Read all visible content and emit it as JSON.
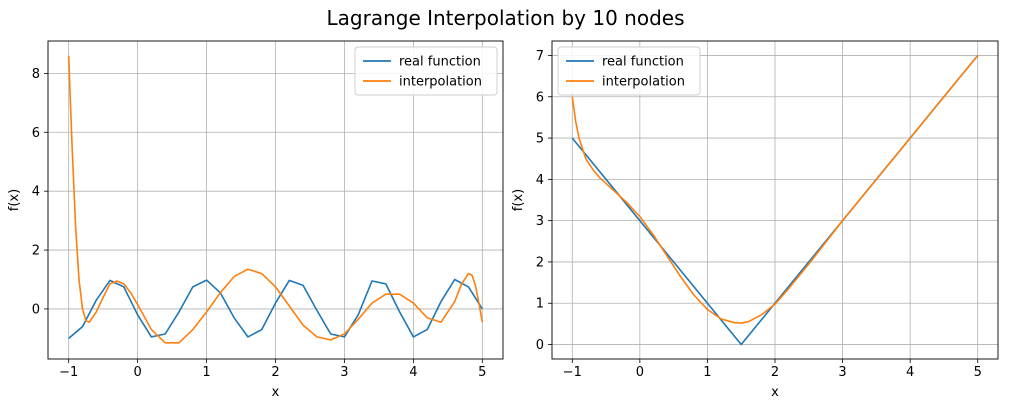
{
  "figure": {
    "title": "Lagrange Interpolation by 10 nodes"
  },
  "chart_data": [
    {
      "type": "line",
      "xlabel": "x",
      "ylabel": "f(x)",
      "xlim": [
        -1.3,
        5.3
      ],
      "ylim": [
        -1.7,
        9.1
      ],
      "xticks": [
        -1,
        0,
        1,
        2,
        3,
        4,
        5
      ],
      "yticks": [
        0,
        2,
        4,
        6,
        8
      ],
      "grid": true,
      "legend": "top-right",
      "colors": {
        "real": "#1f77b4",
        "interp": "#ff7f0e",
        "grid": "#b0b0b0"
      },
      "series": [
        {
          "name": "real function",
          "x": [
            -1.0,
            -0.8,
            -0.6,
            -0.4,
            -0.2,
            0.0,
            0.2,
            0.4,
            0.6,
            0.8,
            1.0,
            1.2,
            1.4,
            1.6,
            1.8,
            2.0,
            2.2,
            2.4,
            2.6,
            2.8,
            3.0,
            3.2,
            3.4,
            3.6,
            3.8,
            4.0,
            4.2,
            4.4,
            4.6,
            4.8,
            5.0
          ],
          "y": [
            -1.0,
            -0.6,
            0.3,
            0.97,
            0.75,
            -0.2,
            -0.95,
            -0.85,
            -0.1,
            0.75,
            0.98,
            0.55,
            -0.3,
            -0.95,
            -0.7,
            0.2,
            0.97,
            0.8,
            -0.05,
            -0.85,
            -0.95,
            -0.2,
            0.95,
            0.85,
            -0.1,
            -0.95,
            -0.7,
            0.25,
            1.0,
            0.75,
            0.0
          ]
        },
        {
          "name": "interpolation",
          "x": [
            -1.0,
            -0.95,
            -0.9,
            -0.85,
            -0.8,
            -0.75,
            -0.7,
            -0.6,
            -0.5,
            -0.4,
            -0.3,
            -0.2,
            -0.1,
            0.0,
            0.2,
            0.4,
            0.6,
            0.8,
            1.0,
            1.2,
            1.4,
            1.6,
            1.8,
            2.0,
            2.2,
            2.4,
            2.6,
            2.8,
            3.0,
            3.2,
            3.4,
            3.6,
            3.8,
            4.0,
            4.2,
            4.4,
            4.6,
            4.7,
            4.8,
            4.85,
            4.9,
            4.95,
            5.0
          ],
          "y": [
            8.6,
            5.5,
            2.8,
            1.0,
            0.0,
            -0.4,
            -0.45,
            -0.1,
            0.4,
            0.85,
            0.95,
            0.85,
            0.55,
            0.15,
            -0.7,
            -1.15,
            -1.15,
            -0.7,
            -0.1,
            0.55,
            1.1,
            1.35,
            1.2,
            0.75,
            0.1,
            -0.55,
            -0.95,
            -1.05,
            -0.85,
            -0.35,
            0.2,
            0.5,
            0.5,
            0.2,
            -0.3,
            -0.45,
            0.25,
            0.85,
            1.2,
            1.15,
            0.8,
            0.2,
            -0.45
          ]
        }
      ]
    },
    {
      "type": "line",
      "xlabel": "x",
      "ylabel": "f(x)",
      "xlim": [
        -1.3,
        5.3
      ],
      "ylim": [
        -0.35,
        7.35
      ],
      "xticks": [
        -1,
        0,
        1,
        2,
        3,
        4,
        5
      ],
      "yticks": [
        0,
        1,
        2,
        3,
        4,
        5,
        6,
        7
      ],
      "grid": true,
      "legend": "top-left",
      "colors": {
        "real": "#1f77b4",
        "interp": "#ff7f0e",
        "grid": "#b0b0b0"
      },
      "series": [
        {
          "name": "real function",
          "x": [
            -1.0,
            1.5,
            5.0
          ],
          "y": [
            5.0,
            0.0,
            7.0
          ]
        },
        {
          "name": "interpolation",
          "x": [
            -1.0,
            -0.95,
            -0.9,
            -0.8,
            -0.7,
            -0.6,
            -0.4,
            -0.2,
            0.0,
            0.2,
            0.4,
            0.6,
            0.8,
            1.0,
            1.2,
            1.4,
            1.5,
            1.6,
            1.8,
            2.0,
            2.2,
            2.5,
            3.0,
            3.5,
            4.0,
            4.5,
            5.0
          ],
          "y": [
            6.0,
            5.4,
            5.0,
            4.5,
            4.25,
            4.05,
            3.75,
            3.45,
            3.1,
            2.65,
            2.15,
            1.65,
            1.2,
            0.85,
            0.62,
            0.53,
            0.52,
            0.55,
            0.72,
            0.98,
            1.35,
            1.95,
            3.0,
            4.0,
            5.0,
            6.0,
            7.0
          ]
        }
      ]
    }
  ]
}
